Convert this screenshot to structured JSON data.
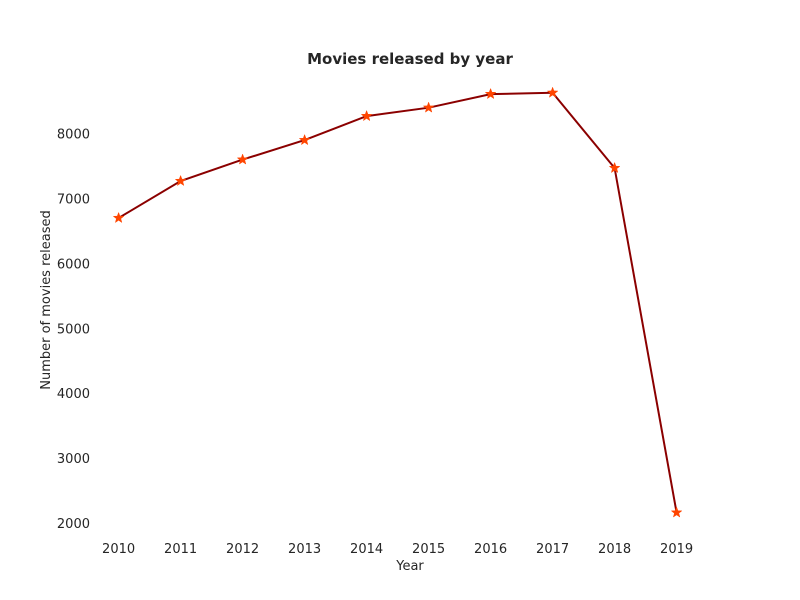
{
  "chart_data": {
    "type": "line",
    "title": "Movies released by year",
    "xlabel": "Year",
    "ylabel": "Number of movies released",
    "x": [
      2010,
      2011,
      2012,
      2013,
      2014,
      2015,
      2016,
      2017,
      2018,
      2019
    ],
    "y": [
      6700,
      7270,
      7600,
      7900,
      8270,
      8400,
      8610,
      8630,
      7470,
      2160
    ],
    "xticks": [
      "2010",
      "2011",
      "2012",
      "2013",
      "2014",
      "2015",
      "2016",
      "2017",
      "2018",
      "2019"
    ],
    "yticks": [
      2000,
      3000,
      4000,
      5000,
      6000,
      7000,
      8000
    ],
    "xlim": [
      2009.7,
      2019.7
    ],
    "ylim": [
      1830,
      8950
    ],
    "grid": false,
    "line_color": "#8b0000",
    "marker": "star",
    "marker_color": "#ff4500"
  }
}
